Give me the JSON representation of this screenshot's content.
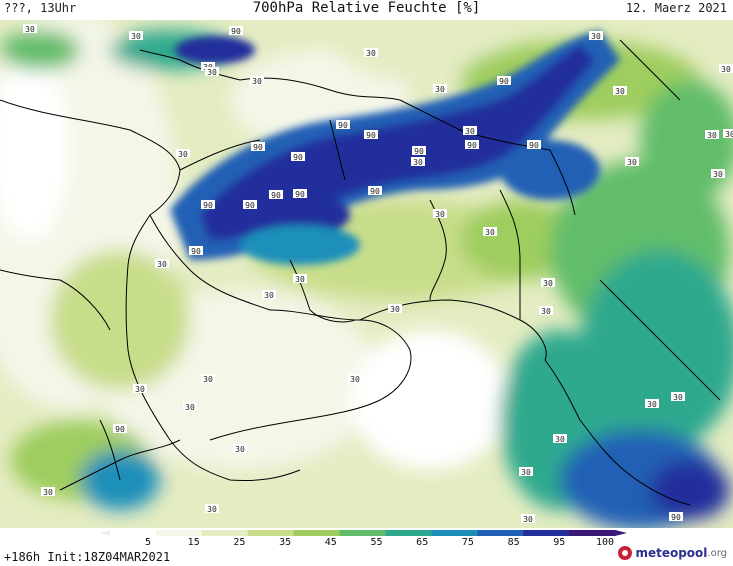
{
  "header": {
    "left": "???, 13Uhr",
    "title": "700hPa Relative Feuchte [%]",
    "date": "12. Maerz 2021"
  },
  "footer": {
    "init": "+186h  Init:18Z04MAR2021",
    "logo_main": "meteopool",
    "logo_suffix": ".org"
  },
  "legend": {
    "ticks": [
      "5",
      "15",
      "25",
      "35",
      "45",
      "55",
      "65",
      "75",
      "85",
      "95",
      "100"
    ],
    "colors": [
      "#ffffff",
      "#f4f6e8",
      "#e4ecc2",
      "#c8dd8a",
      "#9fcd5e",
      "#62bd6a",
      "#2fa98e",
      "#1f8fba",
      "#2160b5",
      "#232f9c",
      "#3a1878"
    ]
  },
  "contour_labels": {
    "values": [
      "30",
      "30",
      "30",
      "30",
      "30",
      "30",
      "30",
      "30",
      "30",
      "30",
      "30",
      "30",
      "30",
      "30",
      "30",
      "30",
      "30",
      "30",
      "30",
      "30",
      "30",
      "30",
      "30",
      "30",
      "30",
      "30",
      "30",
      "30",
      "30",
      "30",
      "30",
      "30",
      "30",
      "30",
      "30",
      "30",
      "30",
      "90",
      "90",
      "90",
      "90",
      "90",
      "90",
      "90",
      "90",
      "90",
      "90",
      "90",
      "90",
      "90",
      "90",
      "90",
      "90",
      "90"
    ]
  },
  "colors": {
    "land_line": "#000000",
    "label_bg": "#ffffff"
  }
}
